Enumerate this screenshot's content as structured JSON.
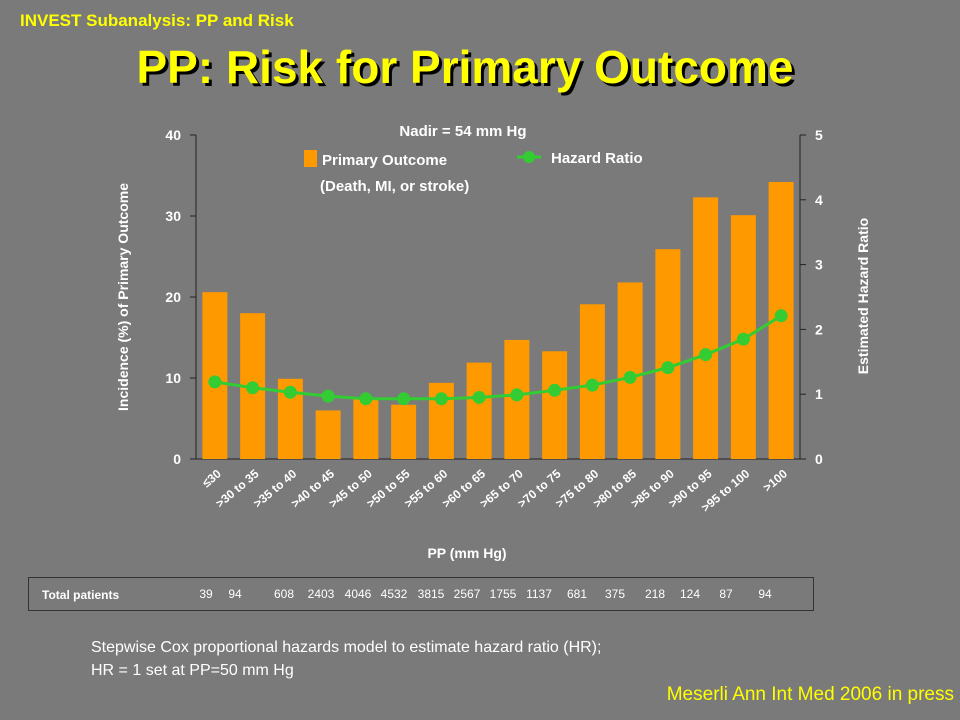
{
  "header": {
    "subtitle": "INVEST Subanalysis: PP and Risk",
    "title": "PP: Risk for Primary Outcome"
  },
  "chart_data": {
    "type": "bar",
    "annotation": "Nadir = 54 mm Hg",
    "xlabel": "PP (mm Hg)",
    "ylabel": "Incidence (%) of Primary  Outcome",
    "y2label": "Estimated Hazard Ratio",
    "ylim": [
      0,
      40
    ],
    "y2lim": [
      0,
      5
    ],
    "yticks": [
      0,
      10,
      20,
      30,
      40
    ],
    "y2ticks": [
      0,
      1,
      2,
      3,
      4,
      5
    ],
    "categories": [
      "≤30",
      ">30 to 35",
      ">35 to 40",
      ">40 to 45",
      ">45 to 50",
      ">50 to 55",
      ">55 to 60",
      ">60 to 65",
      ">65 to 70",
      ">70 to 75",
      ">75 to 80",
      ">80 to 85",
      ">85 to 90",
      ">90 to 95",
      ">95 to 100",
      ">100"
    ],
    "legend_placement": "top-center",
    "series": [
      {
        "name": "Primary Outcome",
        "name_line2": "(Death, MI, or stroke)",
        "type": "bar",
        "axis": "left",
        "color": "#ff9900",
        "values": [
          20.6,
          18.0,
          9.9,
          6.0,
          7.5,
          6.7,
          9.4,
          11.9,
          14.7,
          13.3,
          19.1,
          21.8,
          25.9,
          32.3,
          30.1,
          34.2
        ]
      },
      {
        "name": "Hazard Ratio",
        "type": "line",
        "axis": "right",
        "color": "#33cc33",
        "values": [
          1.19,
          1.1,
          1.03,
          0.97,
          0.93,
          0.93,
          0.93,
          0.95,
          0.99,
          1.06,
          1.14,
          1.26,
          1.41,
          1.61,
          1.85,
          2.21
        ]
      }
    ]
  },
  "table": {
    "header": "Total patients",
    "values": [
      "39",
      "94",
      "608",
      "2403",
      "4046",
      "4532",
      "3815",
      "2567",
      "1755",
      "1137",
      "681",
      "375",
      "218",
      "124",
      "87",
      "94"
    ]
  },
  "footnote": {
    "line1": "Stepwise Cox proportional hazards model to estimate hazard ratio (HR);",
    "line2": "HR = 1 set at PP=50 mm Hg"
  },
  "citation": "Meserli  Ann Int Med 2006 in press"
}
